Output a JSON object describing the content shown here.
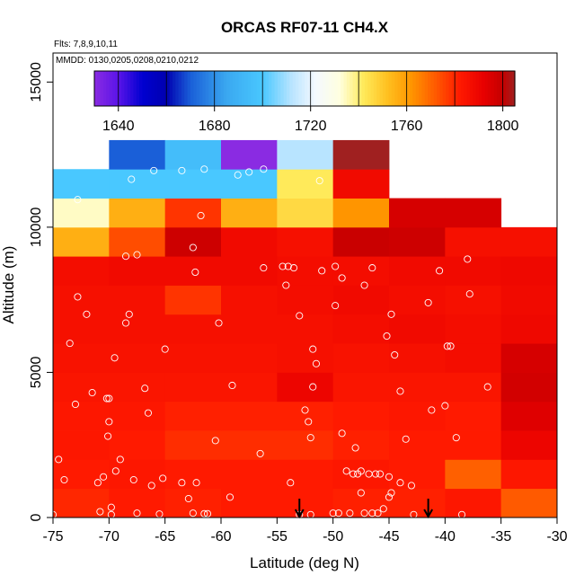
{
  "chart_data": {
    "type": "heatmap",
    "title": "ORCAS RF07-11 CH4.X",
    "flights_note": "Flts: 7,8,9,10,11",
    "dates_note": "MMDD: 0130,0205,0208,0210,0212",
    "xlabel": "Latitude (deg N)",
    "ylabel": "Altitude (m)",
    "xlim": [
      -75,
      -30
    ],
    "ylim": [
      0,
      16000
    ],
    "x_ticks": [
      -75,
      -70,
      -65,
      -60,
      -55,
      -50,
      -45,
      -40,
      -35,
      -30
    ],
    "y_ticks": [
      0,
      5000,
      10000,
      15000
    ],
    "x_tick_labels": [
      "-75",
      "-70",
      "-65",
      "-60",
      "-55",
      "-50",
      "-45",
      "-40",
      "-35",
      "-30"
    ],
    "y_tick_labels": [
      "0",
      "5000",
      "10000",
      "15000"
    ],
    "bin_width_deg": 5,
    "bin_height_m": 1000,
    "colorbar": {
      "min": 1630,
      "max": 1805,
      "ticks": [
        1640,
        1680,
        1720,
        1760,
        1800
      ],
      "tick_labels": [
        "1640",
        "1680",
        "1720",
        "1760",
        "1800"
      ],
      "breaks": [
        1640,
        1660,
        1680,
        1700,
        1720,
        1740,
        1760,
        1780,
        1800
      ],
      "stops": [
        {
          "v": 1630,
          "c": "#8a2be2"
        },
        {
          "v": 1640,
          "c": "#5a14e8"
        },
        {
          "v": 1650,
          "c": "#0000d0"
        },
        {
          "v": 1660,
          "c": "#0000b0"
        },
        {
          "v": 1670,
          "c": "#1a5fd8"
        },
        {
          "v": 1685,
          "c": "#3aa8f0"
        },
        {
          "v": 1700,
          "c": "#49c8ff"
        },
        {
          "v": 1712,
          "c": "#b8e4ff"
        },
        {
          "v": 1722,
          "c": "#f4f9ff"
        },
        {
          "v": 1732,
          "c": "#ffffe0"
        },
        {
          "v": 1742,
          "c": "#ffea5a"
        },
        {
          "v": 1752,
          "c": "#ffc020"
        },
        {
          "v": 1762,
          "c": "#ff9500"
        },
        {
          "v": 1772,
          "c": "#ff5a00"
        },
        {
          "v": 1782,
          "c": "#ff1a00"
        },
        {
          "v": 1792,
          "c": "#e80000"
        },
        {
          "v": 1800,
          "c": "#c40000"
        },
        {
          "v": 1805,
          "c": "#a02020"
        }
      ]
    },
    "cells": [
      {
        "x": -75,
        "y": 0,
        "v": 1780
      },
      {
        "x": -70,
        "y": 0,
        "v": 1782
      },
      {
        "x": -65,
        "y": 0,
        "v": 1781
      },
      {
        "x": -60,
        "y": 0,
        "v": 1782
      },
      {
        "x": -55,
        "y": 0,
        "v": 1782
      },
      {
        "x": -50,
        "y": 0,
        "v": 1781
      },
      {
        "x": -45,
        "y": 0,
        "v": 1781
      },
      {
        "x": -40,
        "y": 0,
        "v": 1783
      },
      {
        "x": -35,
        "y": 0,
        "v": 1772
      },
      {
        "x": -75,
        "y": 1000,
        "v": 1782
      },
      {
        "x": -70,
        "y": 1000,
        "v": 1783
      },
      {
        "x": -65,
        "y": 1000,
        "v": 1782
      },
      {
        "x": -60,
        "y": 1000,
        "v": 1782
      },
      {
        "x": -55,
        "y": 1000,
        "v": 1782
      },
      {
        "x": -50,
        "y": 1000,
        "v": 1783
      },
      {
        "x": -45,
        "y": 1000,
        "v": 1782
      },
      {
        "x": -40,
        "y": 1000,
        "v": 1771
      },
      {
        "x": -35,
        "y": 1000,
        "v": 1783
      },
      {
        "x": -75,
        "y": 2000,
        "v": 1783
      },
      {
        "x": -70,
        "y": 2000,
        "v": 1782
      },
      {
        "x": -65,
        "y": 2000,
        "v": 1779
      },
      {
        "x": -60,
        "y": 2000,
        "v": 1779
      },
      {
        "x": -55,
        "y": 2000,
        "v": 1779
      },
      {
        "x": -50,
        "y": 2000,
        "v": 1781
      },
      {
        "x": -45,
        "y": 2000,
        "v": 1782
      },
      {
        "x": -40,
        "y": 2000,
        "v": 1782
      },
      {
        "x": -35,
        "y": 2000,
        "v": 1790
      },
      {
        "x": -75,
        "y": 3000,
        "v": 1783
      },
      {
        "x": -70,
        "y": 3000,
        "v": 1783
      },
      {
        "x": -65,
        "y": 3000,
        "v": 1781
      },
      {
        "x": -60,
        "y": 3000,
        "v": 1781
      },
      {
        "x": -55,
        "y": 3000,
        "v": 1781
      },
      {
        "x": -50,
        "y": 3000,
        "v": 1782
      },
      {
        "x": -45,
        "y": 3000,
        "v": 1783
      },
      {
        "x": -40,
        "y": 3000,
        "v": 1782
      },
      {
        "x": -35,
        "y": 3000,
        "v": 1794
      },
      {
        "x": -75,
        "y": 4000,
        "v": 1784
      },
      {
        "x": -70,
        "y": 4000,
        "v": 1784
      },
      {
        "x": -65,
        "y": 4000,
        "v": 1784
      },
      {
        "x": -60,
        "y": 4000,
        "v": 1784
      },
      {
        "x": -55,
        "y": 4000,
        "v": 1790
      },
      {
        "x": -50,
        "y": 4000,
        "v": 1784
      },
      {
        "x": -45,
        "y": 4000,
        "v": 1784
      },
      {
        "x": -40,
        "y": 4000,
        "v": 1784
      },
      {
        "x": -35,
        "y": 4000,
        "v": 1797
      },
      {
        "x": -75,
        "y": 5000,
        "v": 1785
      },
      {
        "x": -70,
        "y": 5000,
        "v": 1785
      },
      {
        "x": -65,
        "y": 5000,
        "v": 1785
      },
      {
        "x": -60,
        "y": 5000,
        "v": 1785
      },
      {
        "x": -55,
        "y": 5000,
        "v": 1786
      },
      {
        "x": -50,
        "y": 5000,
        "v": 1785
      },
      {
        "x": -45,
        "y": 5000,
        "v": 1786
      },
      {
        "x": -40,
        "y": 5000,
        "v": 1787
      },
      {
        "x": -35,
        "y": 5000,
        "v": 1796
      },
      {
        "x": -75,
        "y": 6000,
        "v": 1786
      },
      {
        "x": -70,
        "y": 6000,
        "v": 1786
      },
      {
        "x": -65,
        "y": 6000,
        "v": 1786
      },
      {
        "x": -60,
        "y": 6000,
        "v": 1786
      },
      {
        "x": -55,
        "y": 6000,
        "v": 1786
      },
      {
        "x": -50,
        "y": 6000,
        "v": 1787
      },
      {
        "x": -45,
        "y": 6000,
        "v": 1788
      },
      {
        "x": -40,
        "y": 6000,
        "v": 1787
      },
      {
        "x": -35,
        "y": 6000,
        "v": 1789
      },
      {
        "x": -75,
        "y": 7000,
        "v": 1786
      },
      {
        "x": -70,
        "y": 7000,
        "v": 1786
      },
      {
        "x": -65,
        "y": 7000,
        "v": 1778
      },
      {
        "x": -60,
        "y": 7000,
        "v": 1786
      },
      {
        "x": -55,
        "y": 7000,
        "v": 1787
      },
      {
        "x": -50,
        "y": 7000,
        "v": 1788
      },
      {
        "x": -45,
        "y": 7000,
        "v": 1787
      },
      {
        "x": -40,
        "y": 7000,
        "v": 1786
      },
      {
        "x": -35,
        "y": 7000,
        "v": 1788
      },
      {
        "x": -75,
        "y": 8000,
        "v": 1787
      },
      {
        "x": -70,
        "y": 8000,
        "v": 1788
      },
      {
        "x": -65,
        "y": 8000,
        "v": 1788
      },
      {
        "x": -60,
        "y": 8000,
        "v": 1788
      },
      {
        "x": -55,
        "y": 8000,
        "v": 1787
      },
      {
        "x": -50,
        "y": 8000,
        "v": 1787
      },
      {
        "x": -45,
        "y": 8000,
        "v": 1788
      },
      {
        "x": -40,
        "y": 8000,
        "v": 1788
      },
      {
        "x": -35,
        "y": 8000,
        "v": 1789
      },
      {
        "x": -75,
        "y": 9000,
        "v": 1756
      },
      {
        "x": -70,
        "y": 9000,
        "v": 1774
      },
      {
        "x": -65,
        "y": 9000,
        "v": 1798
      },
      {
        "x": -60,
        "y": 9000,
        "v": 1788
      },
      {
        "x": -55,
        "y": 9000,
        "v": 1786
      },
      {
        "x": -50,
        "y": 9000,
        "v": 1799
      },
      {
        "x": -45,
        "y": 9000,
        "v": 1798
      },
      {
        "x": -40,
        "y": 9000,
        "v": 1786
      },
      {
        "x": -35,
        "y": 9000,
        "v": 1786
      },
      {
        "x": -75,
        "y": 10000,
        "v": 1734
      },
      {
        "x": -70,
        "y": 10000,
        "v": 1756
      },
      {
        "x": -65,
        "y": 10000,
        "v": 1778
      },
      {
        "x": -60,
        "y": 10000,
        "v": 1756
      },
      {
        "x": -55,
        "y": 10000,
        "v": 1746
      },
      {
        "x": -50,
        "y": 10000,
        "v": 1762
      },
      {
        "x": -45,
        "y": 10000,
        "v": 1796
      },
      {
        "x": -40,
        "y": 10000,
        "v": 1796
      },
      {
        "x": -75,
        "y": 11000,
        "v": 1700
      },
      {
        "x": -70,
        "y": 11000,
        "v": 1700
      },
      {
        "x": -65,
        "y": 11000,
        "v": 1700
      },
      {
        "x": -60,
        "y": 11000,
        "v": 1700
      },
      {
        "x": -55,
        "y": 11000,
        "v": 1742
      },
      {
        "x": -50,
        "y": 11000,
        "v": 1788
      },
      {
        "x": -70,
        "y": 12000,
        "v": 1670
      },
      {
        "x": -65,
        "y": 12000,
        "v": 1695
      },
      {
        "x": -60,
        "y": 12000,
        "v": 1630
      },
      {
        "x": -55,
        "y": 12000,
        "v": 1712
      },
      {
        "x": -50,
        "y": 12000,
        "v": 1805
      }
    ],
    "points": [
      [
        -75,
        100
      ],
      [
        -74.5,
        2000
      ],
      [
        -74,
        1300
      ],
      [
        -73.5,
        6000
      ],
      [
        -73,
        3900
      ],
      [
        -72.8,
        7600
      ],
      [
        -72,
        7000
      ],
      [
        -71.5,
        4300
      ],
      [
        -71,
        1200
      ],
      [
        -70.8,
        200
      ],
      [
        -70.5,
        1400
      ],
      [
        -70.2,
        4100
      ],
      [
        -70,
        4100
      ],
      [
        -70,
        3300
      ],
      [
        -70.1,
        2800
      ],
      [
        -69.8,
        350
      ],
      [
        -69.8,
        100
      ],
      [
        -69.5,
        5500
      ],
      [
        -69.4,
        1600
      ],
      [
        -68.5,
        6700
      ],
      [
        -68.2,
        7000
      ],
      [
        -69,
        2000
      ],
      [
        -67.8,
        1300
      ],
      [
        -67.5,
        150
      ],
      [
        -66.8,
        4450
      ],
      [
        -66.5,
        3600
      ],
      [
        -66.2,
        1100
      ],
      [
        -65.5,
        120
      ],
      [
        -65.2,
        1350
      ],
      [
        -65,
        5800
      ],
      [
        -63.5,
        1200
      ],
      [
        -62.9,
        650
      ],
      [
        -62.5,
        150
      ],
      [
        -62.2,
        1200
      ],
      [
        -61.5,
        130
      ],
      [
        -61.2,
        130
      ],
      [
        -60.5,
        2650
      ],
      [
        -60.2,
        6700
      ],
      [
        -59.2,
        700
      ],
      [
        -59,
        4550
      ],
      [
        -56.5,
        2200
      ],
      [
        -54,
        8650
      ],
      [
        -53.5,
        8600
      ],
      [
        -54.2,
        8000
      ],
      [
        -53,
        6950
      ],
      [
        -52.5,
        3700
      ],
      [
        -52.2,
        3300
      ],
      [
        -52,
        2750
      ],
      [
        -51.8,
        5800
      ],
      [
        -51.5,
        5300
      ],
      [
        -51.8,
        4500
      ],
      [
        -51,
        8500
      ],
      [
        -49.8,
        7300
      ],
      [
        -49.8,
        8650
      ],
      [
        -49.2,
        8250
      ],
      [
        -50,
        150
      ],
      [
        -49.5,
        150
      ],
      [
        -49.2,
        2900
      ],
      [
        -48.8,
        1600
      ],
      [
        -48.5,
        150
      ],
      [
        -48.2,
        1500
      ],
      [
        -48,
        2400
      ],
      [
        -47.8,
        1500
      ],
      [
        -47.5,
        1600
      ],
      [
        -47.2,
        150
      ],
      [
        -46.8,
        1500
      ],
      [
        -46.5,
        150
      ],
      [
        -46.2,
        1500
      ],
      [
        -46,
        150
      ],
      [
        -45.8,
        1500
      ],
      [
        -45.5,
        300
      ],
      [
        -45.2,
        6250
      ],
      [
        -45,
        700
      ],
      [
        -44.8,
        7000
      ],
      [
        -44.5,
        5600
      ],
      [
        -44,
        4350
      ],
      [
        -43.5,
        2700
      ],
      [
        -47.5,
        850
      ],
      [
        -47.2,
        8000
      ],
      [
        -46.5,
        8600
      ],
      [
        -45,
        1400
      ],
      [
        -44.8,
        850
      ],
      [
        -42.8,
        100
      ],
      [
        -41.5,
        7400
      ],
      [
        -41.2,
        3700
      ],
      [
        -40.5,
        8500
      ],
      [
        -40,
        3850
      ],
      [
        -39.8,
        5900
      ],
      [
        -39.5,
        5900
      ],
      [
        -39,
        2750
      ],
      [
        -38.5,
        100
      ],
      [
        -38,
        8900
      ],
      [
        -37.8,
        7700
      ],
      [
        -36.2,
        4500
      ],
      [
        -72.8,
        10950
      ],
      [
        -68,
        11650
      ],
      [
        -66,
        11950
      ],
      [
        -63.5,
        11950
      ],
      [
        -61.8,
        10400
      ],
      [
        -61.5,
        12000
      ],
      [
        -58.5,
        11800
      ],
      [
        -57.5,
        11900
      ],
      [
        -56.2,
        12000
      ],
      [
        -51.2,
        11600
      ],
      [
        -67.5,
        9050
      ],
      [
        -68.5,
        9000
      ],
      [
        -62.5,
        9300
      ],
      [
        -62.3,
        8450
      ],
      [
        -56.2,
        8600
      ],
      [
        -54.5,
        8650
      ],
      [
        -53.8,
        1200
      ],
      [
        -53,
        100
      ],
      [
        -52,
        100
      ],
      [
        -44,
        1200
      ],
      [
        -43,
        1100
      ]
    ],
    "arrows": [
      -53,
      -41.5
    ]
  }
}
